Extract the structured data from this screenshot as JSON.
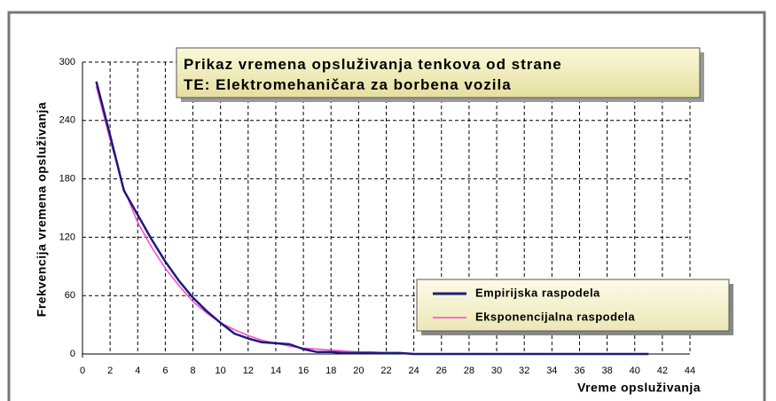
{
  "chart_data": {
    "type": "line",
    "title": [
      "Prikaz vremena opsluživanja tenkova od strane",
      "TE: Elektromehaničara za borbena vozila"
    ],
    "x_label": "Vreme opsluživanja",
    "y_label": "Frekvencija vremena opsluživanja",
    "x": [
      1,
      2,
      3,
      4,
      5,
      6,
      7,
      8,
      9,
      10,
      11,
      12,
      13,
      14,
      15,
      16,
      17,
      18,
      19,
      20,
      21,
      22,
      23,
      24,
      25,
      26,
      27,
      28,
      29,
      30,
      31,
      32,
      33,
      34,
      35,
      36,
      37,
      38,
      39,
      40,
      41
    ],
    "series": [
      {
        "name": "Empirijska raspodela",
        "color": "#1c1c7a",
        "values": [
          280,
          225,
          168,
          143,
          118,
          95,
          75,
          58,
          44,
          32,
          21,
          16,
          12,
          11,
          10,
          5,
          2,
          2,
          1,
          1,
          1,
          1,
          1,
          0,
          0,
          0,
          0,
          0,
          0,
          0,
          0,
          0,
          0,
          0,
          0,
          0,
          0,
          0,
          0,
          0,
          0
        ]
      },
      {
        "name": "Eksponencijalna raspodela",
        "color": "#ff44cc",
        "values": [
          275,
          220,
          170,
          135,
          110,
          88,
          70,
          54,
          42,
          32,
          25,
          19,
          14,
          11,
          8,
          6,
          5,
          4,
          3,
          2,
          2,
          1,
          1,
          0,
          0,
          0,
          0,
          0,
          0,
          0,
          0,
          0,
          0,
          0,
          0,
          0,
          0,
          0,
          0,
          0,
          0
        ]
      }
    ],
    "xlim": [
      0,
      44
    ],
    "ylim": [
      0,
      300
    ],
    "xticks": [
      0,
      2,
      4,
      6,
      8,
      10,
      12,
      14,
      16,
      18,
      20,
      22,
      24,
      26,
      28,
      30,
      32,
      34,
      36,
      38,
      40,
      42,
      44
    ],
    "yticks": [
      0,
      60,
      120,
      180,
      240,
      300
    ],
    "grid": true
  }
}
